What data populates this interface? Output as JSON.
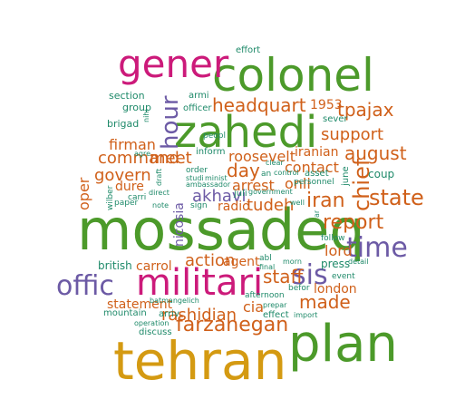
{
  "colors": {
    "green": "#4c9a2a",
    "orange": "#d0601a",
    "purple": "#6c5aa5",
    "magenta": "#cc1a7a",
    "gold": "#d49a12",
    "teal": "#1f8a6a"
  },
  "words": [
    {
      "text": "mossadeq",
      "color": "green"
    },
    {
      "text": "tehran",
      "color": "gold"
    },
    {
      "text": "plan",
      "color": "green"
    },
    {
      "text": "colonel",
      "color": "green"
    },
    {
      "text": "zahedi",
      "color": "green"
    },
    {
      "text": "militari",
      "color": "magenta"
    },
    {
      "text": "gener",
      "color": "magenta"
    },
    {
      "text": "offic",
      "color": "purple"
    },
    {
      "text": "time",
      "color": "purple"
    },
    {
      "text": "sis",
      "color": "purple"
    },
    {
      "text": "hour",
      "color": "purple"
    },
    {
      "text": "chief",
      "color": "orange"
    },
    {
      "text": "state",
      "color": "orange"
    },
    {
      "text": "report",
      "color": "orange"
    },
    {
      "text": "iran",
      "color": "orange"
    },
    {
      "text": "headquart",
      "color": "orange"
    },
    {
      "text": "tpajax",
      "color": "orange"
    },
    {
      "text": "august",
      "color": "orange"
    },
    {
      "text": "support",
      "color": "orange"
    },
    {
      "text": "command",
      "color": "orange"
    },
    {
      "text": "meet",
      "color": "orange"
    },
    {
      "text": "govern",
      "color": "orange"
    },
    {
      "text": "firman",
      "color": "orange"
    },
    {
      "text": "akhavi",
      "color": "purple"
    },
    {
      "text": "day",
      "color": "orange"
    },
    {
      "text": "roosevelt",
      "color": "orange"
    },
    {
      "text": "contact",
      "color": "orange"
    },
    {
      "text": "arrest",
      "color": "orange"
    },
    {
      "text": "tudeh",
      "color": "orange"
    },
    {
      "text": "onli",
      "color": "orange"
    },
    {
      "text": "staff",
      "color": "orange"
    },
    {
      "text": "made",
      "color": "orange"
    },
    {
      "text": "farzanegan",
      "color": "orange"
    },
    {
      "text": "rashidian",
      "color": "orange"
    },
    {
      "text": "action",
      "color": "orange"
    },
    {
      "text": "carrol",
      "color": "orange"
    },
    {
      "text": "dure",
      "color": "orange"
    },
    {
      "text": "oper",
      "color": "orange"
    },
    {
      "text": "statement",
      "color": "orange"
    },
    {
      "text": "agent",
      "color": "orange"
    },
    {
      "text": "cia",
      "color": "orange"
    },
    {
      "text": "lord",
      "color": "orange"
    },
    {
      "text": "london",
      "color": "orange"
    },
    {
      "text": "1953",
      "color": "orange"
    },
    {
      "text": "iranian",
      "color": "orange"
    },
    {
      "text": "radio",
      "color": "orange"
    },
    {
      "text": "press",
      "color": "teal"
    },
    {
      "text": "british",
      "color": "teal"
    },
    {
      "text": "section",
      "color": "teal"
    },
    {
      "text": "group",
      "color": "teal"
    },
    {
      "text": "brigad",
      "color": "teal"
    },
    {
      "text": "armi",
      "color": "teal"
    },
    {
      "text": "officer",
      "color": "teal"
    },
    {
      "text": "effort",
      "color": "teal"
    },
    {
      "text": "nihi",
      "color": "teal"
    },
    {
      "text": "peopl",
      "color": "teal"
    },
    {
      "text": "inform",
      "color": "teal"
    },
    {
      "text": "order",
      "color": "teal"
    },
    {
      "text": "studi",
      "color": "teal"
    },
    {
      "text": "minist",
      "color": "teal"
    },
    {
      "text": "ambassador",
      "color": "teal"
    },
    {
      "text": "juli",
      "color": "teal"
    },
    {
      "text": "government",
      "color": "teal"
    },
    {
      "text": "control",
      "color": "teal"
    },
    {
      "text": "clear",
      "color": "teal"
    },
    {
      "text": "an",
      "color": "teal"
    },
    {
      "text": "asset",
      "color": "teal"
    },
    {
      "text": "personnel",
      "color": "teal"
    },
    {
      "text": "sever",
      "color": "teal"
    },
    {
      "text": "june",
      "color": "teal"
    },
    {
      "text": "coup",
      "color": "teal"
    },
    {
      "text": "nicosia",
      "color": "purple"
    },
    {
      "text": "draft",
      "color": "teal"
    },
    {
      "text": "agre",
      "color": "teal"
    },
    {
      "text": "wilber",
      "color": "teal"
    },
    {
      "text": "paper",
      "color": "teal"
    },
    {
      "text": "carri",
      "color": "teal"
    },
    {
      "text": "direct",
      "color": "teal"
    },
    {
      "text": "note",
      "color": "teal"
    },
    {
      "text": "sign",
      "color": "teal"
    },
    {
      "text": "well",
      "color": "teal"
    },
    {
      "text": "follow",
      "color": "teal"
    },
    {
      "text": "detail",
      "color": "teal"
    },
    {
      "text": "event",
      "color": "teal"
    },
    {
      "text": "befor",
      "color": "teal"
    },
    {
      "text": "morn",
      "color": "teal"
    },
    {
      "text": "abl",
      "color": "teal"
    },
    {
      "text": "final",
      "color": "teal"
    },
    {
      "text": "afternoon",
      "color": "teal"
    },
    {
      "text": "prepar",
      "color": "teal"
    },
    {
      "text": "effect",
      "color": "teal"
    },
    {
      "text": "import",
      "color": "teal"
    },
    {
      "text": "batmangelich",
      "color": "teal"
    },
    {
      "text": "mountain",
      "color": "teal"
    },
    {
      "text": "arriv",
      "color": "teal"
    },
    {
      "text": "operation",
      "color": "teal"
    },
    {
      "text": "discuss",
      "color": "teal"
    },
    {
      "text": "ar",
      "color": "teal"
    }
  ]
}
